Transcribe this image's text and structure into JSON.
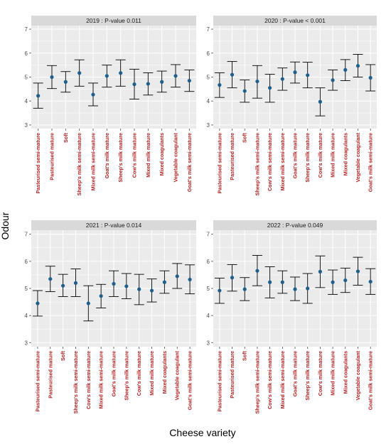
{
  "chart_data": {
    "type": "errorbar",
    "ylabel": "Odour",
    "xlabel": "Cheese variety",
    "ylim": [
      2.85,
      7.15
    ],
    "yticks": [
      3,
      4,
      5,
      6,
      7
    ],
    "grid": true,
    "colors": {
      "point": "#1f5f8b",
      "errorbar": "#000000",
      "tick_label": "#b22222",
      "panel_bg": "#ebebeb",
      "strip_bg": "#d9d9d9",
      "grid": "#ffffff"
    },
    "panels": [
      {
        "title": "2019 : P-value  0.011",
        "categories": [
          "Pasteurised semi-mature",
          "Pasteurised mature",
          "Soft",
          "Sheep's milk semi-mature",
          "Mixed milk semi-mature",
          "Goat's milk mature",
          "Sheep's milk mature",
          "Cow's milk mature",
          "Mixed milk mature",
          "Mixed coagulants",
          "Vegetable coagulant",
          "Goat's milk semi-mature"
        ],
        "mean": [
          4.22,
          5.0,
          4.8,
          5.17,
          4.27,
          5.05,
          5.17,
          4.7,
          4.72,
          4.8,
          5.05,
          4.85
        ],
        "lower": [
          3.7,
          4.52,
          4.37,
          4.62,
          3.8,
          4.58,
          4.62,
          4.08,
          4.25,
          4.37,
          4.58,
          4.4
        ],
        "upper": [
          4.75,
          5.48,
          5.23,
          5.72,
          4.75,
          5.5,
          5.72,
          5.33,
          5.18,
          5.25,
          5.52,
          5.3
        ]
      },
      {
        "title": "2020 : P-value  < 0.001",
        "categories": [
          "Pasteurised semi-mature",
          "Pasteurised mature",
          "Soft",
          "Sheep's milk semi-mature",
          "Cow's milk semi-mature",
          "Mixed milk semi-mature",
          "Goat's milk mature",
          "Sheep's milk mature",
          "Cow's milk mature",
          "Mixed milk mature",
          "Mixed coagulants",
          "Vegetable coagulant",
          "Goat's milk semi-mature"
        ],
        "mean": [
          4.67,
          5.1,
          4.42,
          4.82,
          4.55,
          4.92,
          5.2,
          5.08,
          3.97,
          4.87,
          5.3,
          5.47,
          4.97
        ],
        "lower": [
          4.15,
          4.55,
          3.95,
          4.12,
          3.95,
          4.45,
          4.75,
          4.55,
          3.38,
          4.45,
          4.85,
          5.0,
          4.42
        ],
        "upper": [
          5.18,
          5.65,
          4.88,
          5.48,
          5.12,
          5.38,
          5.63,
          5.62,
          4.55,
          5.3,
          5.73,
          5.95,
          5.52
        ]
      },
      {
        "title": "2021 : P-value  0.014",
        "categories": [
          "Pasteurised semi-mature",
          "Pasteurised mature",
          "Soft",
          "Sheep's milk semi-mature",
          "Cow's milk semi-mature",
          "Mixed milk semi-mature",
          "Goat's milk mature",
          "Sheep's milk mature",
          "Cow's milk mature",
          "Mixed milk mature",
          "Mixed coagulants",
          "Vegetable coagulant",
          "Goat's milk semi-mature"
        ],
        "mean": [
          4.45,
          5.35,
          5.1,
          5.2,
          4.45,
          4.72,
          5.17,
          5.08,
          4.97,
          4.92,
          5.23,
          5.45,
          5.33
        ],
        "lower": [
          3.98,
          4.88,
          4.7,
          4.7,
          3.8,
          4.28,
          4.7,
          4.62,
          4.4,
          4.5,
          4.82,
          5.0,
          4.8
        ],
        "upper": [
          4.92,
          5.82,
          5.52,
          5.72,
          5.1,
          5.15,
          5.65,
          5.55,
          5.52,
          5.35,
          5.65,
          5.92,
          5.87
        ]
      },
      {
        "title": "2022 : P-value  0.049",
        "categories": [
          "Pasteurised semi-mature",
          "Pasteurised mature",
          "Soft",
          "Sheep's milk semi-mature",
          "Cow's milk semi-mature",
          "Mixed milk semi-mature",
          "Goat's milk mature",
          "Sheep's milk mature",
          "Cow's milk mature",
          "Mixed milk mature",
          "Mixed coagulants",
          "Vegetable coagulant",
          "Goat's milk semi-mature"
        ],
        "mean": [
          4.92,
          5.4,
          4.97,
          5.65,
          5.23,
          5.23,
          4.97,
          5.0,
          5.62,
          5.23,
          5.3,
          5.63,
          5.25
        ],
        "lower": [
          4.45,
          4.9,
          4.55,
          5.1,
          4.65,
          4.82,
          4.55,
          4.45,
          5.03,
          4.78,
          4.85,
          5.12,
          4.78
        ],
        "upper": [
          5.38,
          5.88,
          5.4,
          6.22,
          5.8,
          5.65,
          5.42,
          5.55,
          6.2,
          5.68,
          5.75,
          6.15,
          5.73
        ]
      }
    ]
  }
}
